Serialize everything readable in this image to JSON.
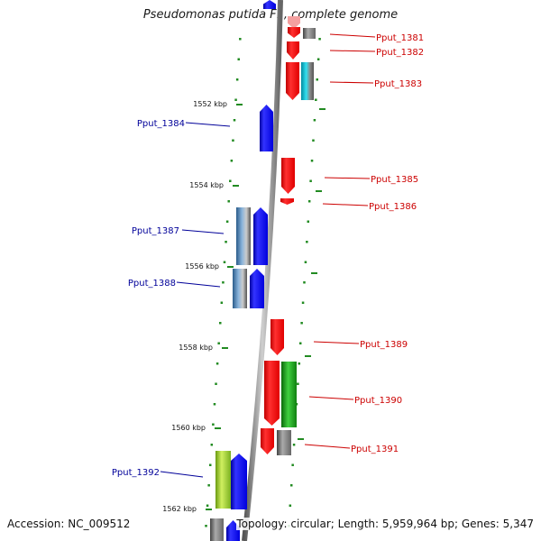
{
  "title": "Pseudomonas putida F1, complete genome",
  "footer": {
    "accession": "Accession: NC_009512",
    "summary": "Topology: circular; Length: 5,959,964 bp; Genes: 5,347"
  },
  "colors": {
    "forward_gene": "#0000ee",
    "reverse_gene": "#ee0000",
    "forward_label": "#000099",
    "reverse_label": "#cc0000",
    "axis": "#8c8c8c",
    "ticks": "#228b22"
  },
  "ruler": [
    {
      "label": "1552 kbp"
    },
    {
      "label": "1554 kbp"
    },
    {
      "label": "1556 kbp"
    },
    {
      "label": "1558 kbp"
    },
    {
      "label": "1560 kbp"
    },
    {
      "label": "1562 kbp"
    }
  ],
  "genes": [
    {
      "label": "Pput_1381",
      "strand": "reverse"
    },
    {
      "label": "Pput_1382",
      "strand": "reverse"
    },
    {
      "label": "Pput_1383",
      "strand": "reverse"
    },
    {
      "label": "Pput_1384",
      "strand": "forward"
    },
    {
      "label": "Pput_1385",
      "strand": "reverse"
    },
    {
      "label": "Pput_1386",
      "strand": "reverse"
    },
    {
      "label": "Pput_1387",
      "strand": "forward"
    },
    {
      "label": "Pput_1388",
      "strand": "forward"
    },
    {
      "label": "Pput_1389",
      "strand": "reverse"
    },
    {
      "label": "Pput_1390",
      "strand": "reverse"
    },
    {
      "label": "Pput_1391",
      "strand": "reverse"
    },
    {
      "label": "Pput_1392",
      "strand": "forward"
    }
  ]
}
